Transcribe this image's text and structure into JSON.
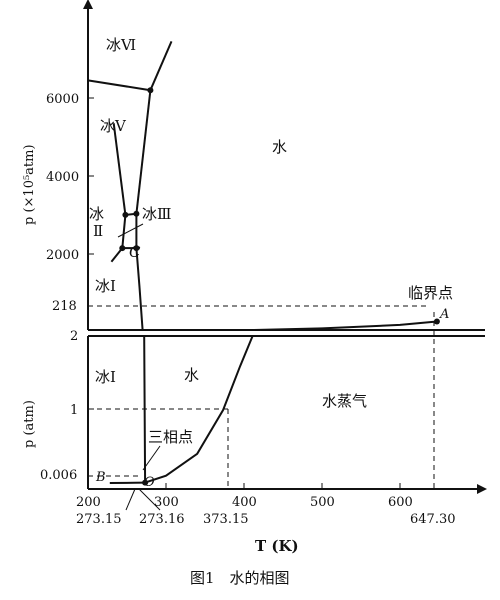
{
  "chart_data": {
    "type": "line",
    "caption": "图1　水的相图",
    "panels": [
      {
        "name": "upper",
        "y_axis_label": "p (×10⁵atm)",
        "y_ticks": [
          2000,
          4000,
          6000
        ],
        "extra_y_ticks": [
          218
        ],
        "ylim": [
          0,
          7200
        ],
        "xlim": [
          200,
          700
        ],
        "regions": [
          "冰Ⅵ",
          "冰Ⅴ",
          "冰Ⅲ",
          "冰",
          "Ⅱ",
          "冰Ⅰ",
          "水"
        ],
        "point_labels": [
          "C",
          "A"
        ],
        "annotation": "临界点",
        "curves": [
          {
            "name": "melting-ice1",
            "points": [
              [
                270,
                0
              ],
              [
                266,
                1100
              ],
              [
                262,
                2100
              ]
            ]
          },
          {
            "name": "ice1-ice2",
            "points": [
              [
                230,
                1750
              ],
              [
                244,
                2100
              ]
            ]
          },
          {
            "name": "ice1-ice3",
            "points": [
              [
                244,
                2100
              ],
              [
                262,
                2100
              ]
            ]
          },
          {
            "name": "ice2-ice3",
            "points": [
              [
                248,
                2950
              ],
              [
                244,
                2100
              ]
            ]
          },
          {
            "name": "ice2-ice5",
            "points": [
              [
                248,
                2950
              ],
              [
                233,
                5300
              ]
            ]
          },
          {
            "name": "ice3-ice5",
            "points": [
              [
                248,
                2950
              ],
              [
                262,
                2980
              ]
            ]
          },
          {
            "name": "ice3-water",
            "points": [
              [
                262,
                2100
              ],
              [
                262,
                2980
              ]
            ]
          },
          {
            "name": "ice5-water",
            "points": [
              [
                262,
                2980
              ],
              [
                280,
                6150
              ]
            ]
          },
          {
            "name": "ice5-ice6",
            "points": [
              [
                200,
                6400
              ],
              [
                280,
                6150
              ]
            ]
          },
          {
            "name": "ice6-water",
            "points": [
              [
                280,
                6150
              ],
              [
                307,
                7400
              ]
            ]
          },
          {
            "name": "vaporization-high",
            "points": [
              [
                411,
                0
              ],
              [
                500,
                40
              ],
              [
                600,
                130
              ],
              [
                647.3,
                218
              ]
            ]
          }
        ],
        "markers": [
          [
            244,
            2100
          ],
          [
            262,
            2100
          ],
          [
            248,
            2950
          ],
          [
            262,
            2980
          ],
          [
            280,
            6150
          ],
          [
            647.3,
            218
          ]
        ]
      },
      {
        "name": "lower",
        "y_axis_label": "p (atm)",
        "y_ticks": [
          1,
          2
        ],
        "extra_y_ticks": [
          0.006
        ],
        "ylim": [
          0,
          2.2
        ],
        "xlim": [
          200,
          700
        ],
        "x_ticks": [
          200,
          300,
          400,
          500,
          600
        ],
        "x_label": "T (K)",
        "special_x_labels": [
          "273.15",
          "273.16",
          "373.15",
          "647.30"
        ],
        "regions": [
          "冰Ⅰ",
          "水",
          "水蒸气"
        ],
        "point_labels": [
          "B",
          "O"
        ],
        "annotation": "三相点",
        "curves": [
          {
            "name": "melting",
            "points": [
              [
                273.16,
                0.006
              ],
              [
                272,
                2.0
              ],
              [
                271.5,
                2.2
              ]
            ]
          },
          {
            "name": "vaporization",
            "points": [
              [
                273.16,
                0.006
              ],
              [
                300,
                0.1
              ],
              [
                340,
                0.4
              ],
              [
                373.15,
                1.0
              ],
              [
                395,
                1.6
              ],
              [
                411,
                2.2
              ]
            ]
          },
          {
            "name": "sublimation",
            "points": [
              [
                228,
                0.0
              ],
              [
                260,
                0.003
              ],
              [
                273.16,
                0.006
              ]
            ]
          }
        ],
        "markers": [
          [
            273.16,
            0.006
          ]
        ]
      }
    ]
  }
}
